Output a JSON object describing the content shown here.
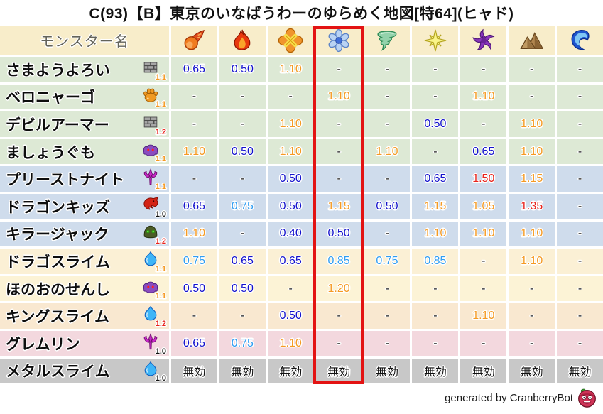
{
  "chart_data": {
    "type": "table",
    "title": "C(93)【B】東京のいなばうわーのゆらめく地図[特64](ヒャド)",
    "monster_name_label": "モンスター名",
    "element_icons": [
      "fireball-icon",
      "flame-icon",
      "explosion-icon",
      "ice-icon",
      "wind-icon",
      "light-icon",
      "dark-icon",
      "earth-icon",
      "water-icon"
    ],
    "highlighted_element_index": 3,
    "immune_label": "無効",
    "rows": [
      {
        "name": "さまようよろい",
        "family_icon": "brick-icon",
        "badge": "1.1",
        "badge_color": "#f59a23",
        "bg": "#dde9d5",
        "values": [
          "0.65",
          "0.50",
          "1.10",
          "-",
          "-",
          "-",
          "-",
          "-",
          "-"
        ]
      },
      {
        "name": "ベロニャーゴ",
        "family_icon": "paw-icon",
        "badge": "1.1",
        "badge_color": "#f59a23",
        "bg": "#dde9d5",
        "values": [
          "-",
          "-",
          "-",
          "1.10",
          "-",
          "-",
          "1.10",
          "-",
          "-"
        ]
      },
      {
        "name": "デビルアーマー",
        "family_icon": "brick-icon",
        "badge": "1.2",
        "badge_color": "#e8231c",
        "bg": "#dde9d5",
        "values": [
          "-",
          "-",
          "1.10",
          "-",
          "-",
          "0.50",
          "-",
          "1.10",
          "-"
        ]
      },
      {
        "name": "ましょうぐも",
        "family_icon": "spider-icon",
        "badge": "1.1",
        "badge_color": "#f59a23",
        "bg": "#dde9d5",
        "values": [
          "1.10",
          "0.50",
          "1.10",
          "-",
          "1.10",
          "-",
          "0.65",
          "1.10",
          "-"
        ]
      },
      {
        "name": "プリーストナイト",
        "family_icon": "trident-icon",
        "badge": "1.1",
        "badge_color": "#f59a23",
        "bg": "#cfdcec",
        "values": [
          "-",
          "-",
          "0.50",
          "-",
          "-",
          "0.65",
          "1.50",
          "1.15",
          "-"
        ]
      },
      {
        "name": "ドラゴンキッズ",
        "family_icon": "dragon-icon",
        "badge": "1.0",
        "badge_color": "#111111",
        "bg": "#cfdcec",
        "values": [
          "0.65",
          "0.75",
          "0.50",
          "1.15",
          "0.50",
          "1.15",
          "1.05",
          "1.35",
          "-"
        ]
      },
      {
        "name": "キラージャック",
        "family_icon": "helmet-icon",
        "badge": "1.2",
        "badge_color": "#e8231c",
        "bg": "#cfdcec",
        "values": [
          "1.10",
          "-",
          "0.40",
          "0.50",
          "-",
          "1.10",
          "1.10",
          "1.10",
          "-"
        ]
      },
      {
        "name": "ドラゴスライム",
        "family_icon": "slime-icon",
        "badge": "1.1",
        "badge_color": "#f59a23",
        "bg": "#fbf0d5",
        "values": [
          "0.75",
          "0.65",
          "0.65",
          "0.85",
          "0.75",
          "0.85",
          "-",
          "1.10",
          "-"
        ]
      },
      {
        "name": "ほのおのせんし",
        "family_icon": "spider-icon",
        "badge": "1.1",
        "badge_color": "#f59a23",
        "bg": "#fcf3d6",
        "values": [
          "0.50",
          "0.50",
          "-",
          "1.20",
          "-",
          "-",
          "-",
          "-",
          "-"
        ]
      },
      {
        "name": "キングスライム",
        "family_icon": "slime-icon",
        "badge": "1.2",
        "badge_color": "#e8231c",
        "bg": "#f9e8d0",
        "values": [
          "-",
          "-",
          "0.50",
          "-",
          "-",
          "-",
          "1.10",
          "-",
          "-"
        ]
      },
      {
        "name": "グレムリン",
        "family_icon": "trident-icon",
        "badge": "1.0",
        "badge_color": "#111111",
        "bg": "#f3d8de",
        "values": [
          "0.65",
          "0.75",
          "1.10",
          "-",
          "-",
          "-",
          "-",
          "-",
          "-"
        ]
      },
      {
        "name": "メタルスライム",
        "family_icon": "slime-icon",
        "badge": "1.0",
        "badge_color": "#111111",
        "bg": "#c8c8c8",
        "values": [
          "無効",
          "無効",
          "無効",
          "無効",
          "無効",
          "無効",
          "無効",
          "無効",
          "無効"
        ]
      }
    ]
  },
  "colors": {
    "header_bg": "#f8edca",
    "header_text": "#63635a",
    "highlight_box": "#e31313",
    "value_strong_resist": "#1412cd",
    "value_mild_resist": "#2f9df2",
    "value_weak": "#f59a23",
    "value_very_weak": "#e8231c",
    "value_neutral": "#1a1a1a",
    "value_immune": "#111111"
  },
  "footer": {
    "credit": "generated by CranberryBot",
    "icon": "cranberry-icon"
  }
}
